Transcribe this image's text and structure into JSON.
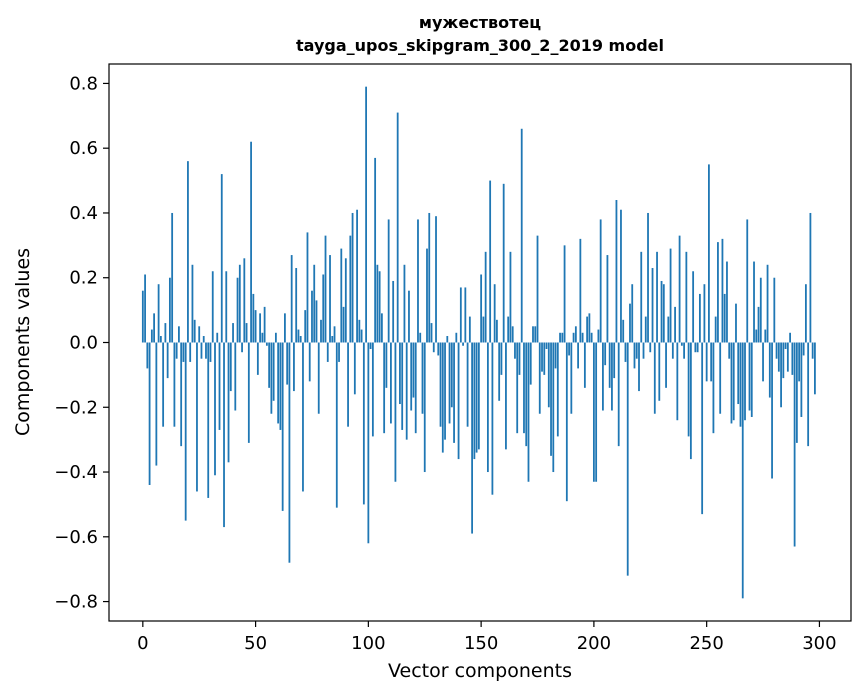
{
  "chart_data": {
    "type": "bar",
    "title": "мужествотец",
    "subtitle": "tayga_upos_skipgram_300_2_2019 model",
    "xlabel": "Vector components",
    "ylabel": "Components values",
    "xlim": [
      -15,
      314
    ],
    "ylim": [
      -0.86,
      0.86
    ],
    "xticks": [
      0,
      50,
      100,
      150,
      200,
      250,
      300
    ],
    "yticks": [
      -0.8,
      -0.6,
      -0.4,
      -0.2,
      0.0,
      0.2,
      0.4,
      0.6,
      0.8
    ],
    "ytick_labels": [
      "−0.8",
      "−0.6",
      "−0.4",
      "−0.2",
      "0.0",
      "0.2",
      "0.4",
      "0.6",
      "0.8"
    ],
    "bar_color": "#1f77b4",
    "grid": false,
    "values": [
      0.16,
      0.21,
      -0.08,
      -0.44,
      0.04,
      0.09,
      -0.38,
      0.18,
      0.02,
      -0.26,
      0.06,
      -0.11,
      0.2,
      0.4,
      -0.26,
      -0.05,
      0.05,
      -0.32,
      -0.06,
      -0.55,
      0.56,
      -0.06,
      0.24,
      0.07,
      -0.46,
      0.05,
      -0.05,
      0.02,
      -0.05,
      -0.48,
      -0.06,
      0.22,
      -0.41,
      0.03,
      -0.27,
      0.52,
      -0.57,
      0.22,
      -0.37,
      -0.15,
      0.06,
      -0.21,
      0.2,
      0.24,
      -0.03,
      0.26,
      0.06,
      -0.31,
      0.62,
      0.15,
      0.1,
      -0.1,
      0.09,
      0.03,
      0.11,
      -0.01,
      -0.14,
      -0.22,
      -0.18,
      0.03,
      -0.25,
      -0.27,
      -0.52,
      0.09,
      -0.13,
      -0.68,
      0.27,
      -0.15,
      0.23,
      0.04,
      0.02,
      -0.46,
      0.1,
      0.34,
      -0.12,
      0.16,
      0.24,
      0.13,
      -0.22,
      0.07,
      0.21,
      0.33,
      -0.06,
      0.27,
      0.02,
      0.05,
      -0.51,
      -0.06,
      0.29,
      0.11,
      0.26,
      -0.26,
      0.33,
      0.4,
      -0.16,
      0.41,
      0.07,
      0.04,
      -0.5,
      0.79,
      -0.62,
      -0.02,
      -0.29,
      0.57,
      0.24,
      0.22,
      0.09,
      -0.28,
      -0.14,
      0.38,
      -0.25,
      0.19,
      -0.43,
      0.71,
      -0.19,
      -0.27,
      0.24,
      -0.3,
      0.16,
      -0.21,
      -0.17,
      -0.28,
      0.38,
      0.03,
      -0.22,
      -0.4,
      0.29,
      0.4,
      0.06,
      -0.03,
      0.39,
      -0.04,
      -0.26,
      -0.34,
      -0.3,
      0.02,
      -0.25,
      -0.2,
      -0.31,
      0.03,
      -0.36,
      0.17,
      -0.01,
      0.17,
      -0.26,
      0.08,
      -0.59,
      -0.36,
      -0.34,
      -0.33,
      0.21,
      0.08,
      0.28,
      -0.4,
      0.5,
      -0.47,
      0.18,
      0.07,
      -0.18,
      -0.1,
      0.49,
      -0.33,
      0.08,
      0.28,
      0.05,
      -0.05,
      -0.28,
      -0.1,
      0.66,
      -0.28,
      -0.32,
      -0.43,
      -0.13,
      0.05,
      0.05,
      0.33,
      -0.22,
      -0.09,
      -0.1,
      -0.02,
      -0.2,
      -0.35,
      -0.4,
      -0.08,
      -0.29,
      0.03,
      0.03,
      0.3,
      -0.49,
      -0.04,
      -0.22,
      0.03,
      0.05,
      -0.08,
      0.32,
      0.03,
      -0.14,
      0.08,
      0.09,
      0.03,
      -0.43,
      -0.43,
      0.04,
      0.38,
      -0.21,
      -0.07,
      0.27,
      -0.14,
      -0.21,
      -0.11,
      0.44,
      -0.32,
      0.41,
      0.07,
      -0.06,
      -0.72,
      0.12,
      0.18,
      -0.08,
      -0.05,
      -0.15,
      0.28,
      -0.05,
      0.08,
      0.4,
      -0.03,
      0.23,
      -0.22,
      0.28,
      -0.18,
      0.19,
      0.18,
      -0.14,
      0.08,
      0.29,
      -0.05,
      0.11,
      -0.24,
      0.33,
      -0.01,
      -0.05,
      0.28,
      -0.29,
      -0.36,
      0.22,
      -0.03,
      -0.03,
      0.15,
      -0.53,
      0.18,
      -0.12,
      0.55,
      -0.12,
      -0.28,
      0.08,
      0.31,
      -0.22,
      0.32,
      0.15,
      0.25,
      -0.05,
      -0.25,
      -0.24,
      0.12,
      -0.19,
      -0.26,
      -0.79,
      -0.24,
      0.38,
      -0.21,
      -0.23,
      0.25,
      0.04,
      0.11,
      0.2,
      -0.12,
      0.04,
      0.24,
      -0.17,
      -0.42,
      0.2,
      -0.05,
      -0.09,
      -0.2,
      -0.11,
      -0.02,
      -0.09,
      0.03,
      -0.1,
      -0.63,
      -0.31,
      -0.12,
      -0.23,
      -0.04,
      0.18,
      -0.32,
      0.4,
      -0.05,
      -0.16
    ]
  }
}
